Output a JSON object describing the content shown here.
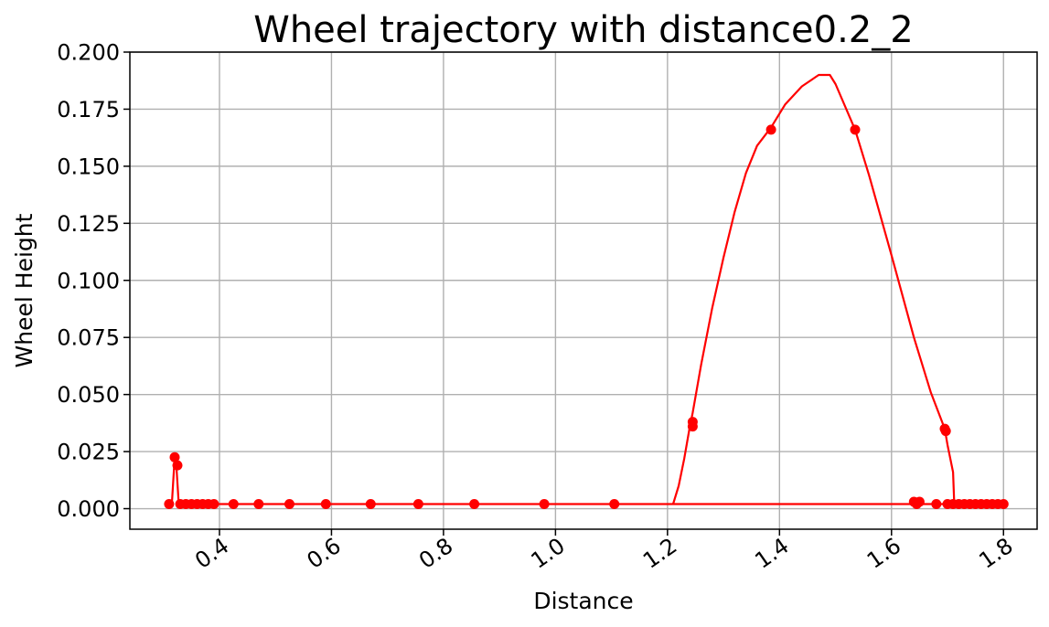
{
  "chart_data": {
    "type": "line",
    "title": "Wheel trajectory with distance0.2_2",
    "xlabel": "Distance",
    "ylabel": "Wheel Height",
    "xlim": [
      0.24,
      1.86
    ],
    "ylim": [
      -0.009,
      0.2
    ],
    "xticks": [
      0.4,
      0.6,
      0.8,
      1.0,
      1.2,
      1.4,
      1.6,
      1.8
    ],
    "xtick_labels": [
      "0.4",
      "0.6",
      "0.8",
      "1.0",
      "1.2",
      "1.4",
      "1.6",
      "1.8"
    ],
    "yticks": [
      0.0,
      0.025,
      0.05,
      0.075,
      0.1,
      0.125,
      0.15,
      0.175,
      0.2
    ],
    "ytick_labels": [
      "0.000",
      "0.025",
      "0.050",
      "0.075",
      "0.100",
      "0.125",
      "0.150",
      "0.175",
      "0.200"
    ],
    "grid": true,
    "color": "#ff0000",
    "series": [
      {
        "line": [
          [
            0.31,
            0.002
          ],
          [
            0.315,
            0.002
          ],
          [
            0.32,
            0.0225
          ],
          [
            0.323,
            0.019
          ],
          [
            0.327,
            0.003
          ],
          [
            0.335,
            0.002
          ],
          [
            0.4,
            0.002
          ],
          [
            0.6,
            0.002
          ],
          [
            0.8,
            0.002
          ],
          [
            1.0,
            0.002
          ],
          [
            1.1,
            0.002
          ],
          [
            1.21,
            0.002
          ],
          [
            1.22,
            0.01
          ],
          [
            1.23,
            0.022
          ],
          [
            1.24,
            0.036
          ],
          [
            1.245,
            0.042
          ],
          [
            1.26,
            0.063
          ],
          [
            1.28,
            0.088
          ],
          [
            1.3,
            0.11
          ],
          [
            1.32,
            0.13
          ],
          [
            1.34,
            0.147
          ],
          [
            1.36,
            0.159
          ],
          [
            1.385,
            0.167
          ],
          [
            1.41,
            0.177
          ],
          [
            1.44,
            0.185
          ],
          [
            1.47,
            0.19
          ],
          [
            1.49,
            0.19
          ],
          [
            1.5,
            0.186
          ],
          [
            1.535,
            0.166
          ],
          [
            1.56,
            0.146
          ],
          [
            1.6,
            0.111
          ],
          [
            1.64,
            0.075
          ],
          [
            1.67,
            0.051
          ],
          [
            1.695,
            0.035
          ],
          [
            1.7,
            0.028
          ],
          [
            1.71,
            0.016
          ],
          [
            1.712,
            0.002
          ],
          [
            1.75,
            0.002
          ],
          [
            1.8,
            0.002
          ],
          [
            1.6,
            0.002
          ],
          [
            1.3,
            0.002
          ],
          [
            1.0,
            0.002
          ],
          [
            0.6,
            0.002
          ],
          [
            0.335,
            0.002
          ]
        ],
        "points": [
          [
            0.31,
            0.002
          ],
          [
            0.32,
            0.0225
          ],
          [
            0.325,
            0.019
          ],
          [
            0.33,
            0.002
          ],
          [
            0.34,
            0.002
          ],
          [
            0.35,
            0.002
          ],
          [
            0.36,
            0.002
          ],
          [
            0.37,
            0.002
          ],
          [
            0.38,
            0.002
          ],
          [
            0.39,
            0.002
          ],
          [
            0.425,
            0.002
          ],
          [
            0.47,
            0.002
          ],
          [
            0.525,
            0.002
          ],
          [
            0.59,
            0.002
          ],
          [
            0.67,
            0.002
          ],
          [
            0.755,
            0.002
          ],
          [
            0.855,
            0.002
          ],
          [
            0.98,
            0.002
          ],
          [
            1.105,
            0.002
          ],
          [
            1.245,
            0.036
          ],
          [
            1.245,
            0.038
          ],
          [
            1.385,
            0.166
          ],
          [
            1.535,
            0.166
          ],
          [
            1.64,
            0.003
          ],
          [
            1.645,
            0.002
          ],
          [
            1.65,
            0.003
          ],
          [
            1.68,
            0.002
          ],
          [
            1.695,
            0.035
          ],
          [
            1.697,
            0.034
          ],
          [
            1.7,
            0.002
          ],
          [
            1.71,
            0.002
          ],
          [
            1.72,
            0.002
          ],
          [
            1.73,
            0.002
          ],
          [
            1.74,
            0.002
          ],
          [
            1.75,
            0.002
          ],
          [
            1.76,
            0.002
          ],
          [
            1.77,
            0.002
          ],
          [
            1.78,
            0.002
          ],
          [
            1.79,
            0.002
          ],
          [
            1.8,
            0.002
          ]
        ]
      }
    ]
  }
}
